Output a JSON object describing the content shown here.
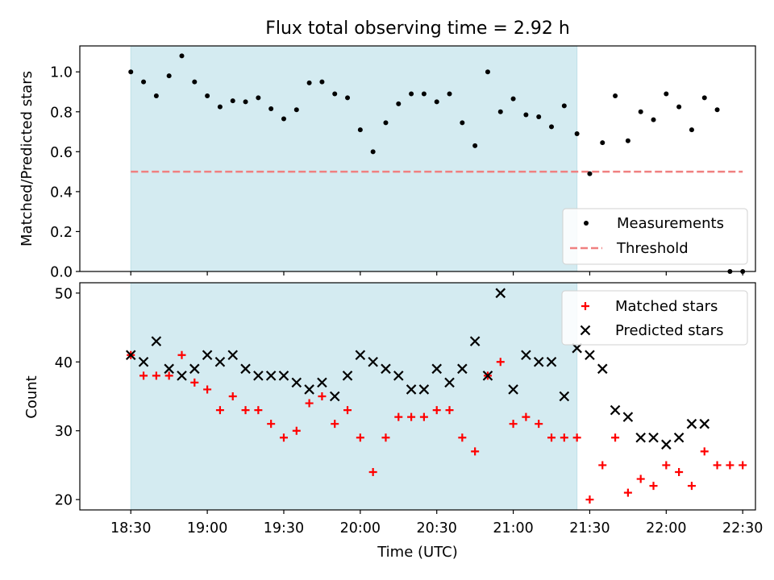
{
  "chart_data": [
    {
      "type": "scatter",
      "title": "Flux total observing time = 2.92 h",
      "ylabel": "Matched/Predicted stars",
      "xlabel": "",
      "x_unit": "minutes past 18:30 UTC",
      "xlim": [
        -20,
        245
      ],
      "ylim": [
        0.0,
        1.13
      ],
      "yticks": [
        "0.0",
        "0.2",
        "0.4",
        "0.6",
        "0.8",
        "1.0"
      ],
      "shaded_span": [
        0,
        175
      ],
      "shade_color": "#d4ebf1",
      "threshold": {
        "name": "Threshold",
        "y": 0.5,
        "x_range": [
          0,
          240
        ],
        "color": "#f08080"
      },
      "series": [
        {
          "name": "Measurements",
          "marker": "dot",
          "color": "#000000",
          "x": [
            0,
            5,
            10,
            15,
            20,
            25,
            30,
            35,
            40,
            45,
            50,
            55,
            60,
            65,
            70,
            75,
            80,
            85,
            90,
            95,
            100,
            105,
            110,
            115,
            120,
            125,
            130,
            135,
            140,
            145,
            150,
            155,
            160,
            165,
            170,
            175,
            180,
            185,
            190,
            195,
            200,
            205,
            210,
            215,
            220,
            225,
            230,
            235,
            240
          ],
          "y": [
            1.0,
            0.95,
            0.88,
            0.98,
            1.08,
            0.95,
            0.88,
            0.825,
            0.855,
            0.85,
            0.87,
            0.815,
            0.765,
            0.81,
            0.945,
            0.95,
            0.89,
            0.87,
            0.71,
            0.6,
            0.745,
            0.84,
            0.89,
            0.89,
            0.85,
            0.89,
            0.745,
            0.63,
            1.0,
            0.8,
            0.865,
            0.785,
            0.775,
            0.725,
            0.83,
            0.69,
            0.49,
            0.645,
            0.88,
            0.655,
            0.8,
            0.76,
            0.89,
            0.825,
            0.71,
            0.87,
            0.81,
            0.0,
            0.0
          ]
        }
      ],
      "legend": {
        "placement": "lower-right",
        "entries": [
          "Measurements",
          "Threshold"
        ]
      }
    },
    {
      "type": "scatter",
      "title": "",
      "ylabel": "Count",
      "xlabel": "Time (UTC)",
      "x_unit": "minutes past 18:30 UTC",
      "xlim": [
        -20,
        245
      ],
      "ylim": [
        18.5,
        51.5
      ],
      "yticks": [
        "20",
        "30",
        "40",
        "50"
      ],
      "xticks": [
        {
          "x": 0,
          "label": "18:30"
        },
        {
          "x": 30,
          "label": "19:00"
        },
        {
          "x": 60,
          "label": "19:30"
        },
        {
          "x": 90,
          "label": "20:00"
        },
        {
          "x": 120,
          "label": "20:30"
        },
        {
          "x": 150,
          "label": "21:00"
        },
        {
          "x": 180,
          "label": "21:30"
        },
        {
          "x": 210,
          "label": "22:00"
        },
        {
          "x": 240,
          "label": "22:30"
        }
      ],
      "shaded_span": [
        0,
        175
      ],
      "series": [
        {
          "name": "Matched stars",
          "marker": "plus",
          "color": "#ff0000",
          "x": [
            0,
            5,
            10,
            15,
            20,
            25,
            30,
            35,
            40,
            45,
            50,
            55,
            60,
            65,
            70,
            75,
            80,
            85,
            90,
            95,
            100,
            105,
            110,
            115,
            120,
            125,
            130,
            135,
            140,
            145,
            150,
            155,
            160,
            165,
            170,
            175,
            180,
            185,
            190,
            195,
            200,
            205,
            210,
            215,
            220,
            225,
            230,
            235,
            240
          ],
          "y": [
            41,
            38,
            38,
            38,
            41,
            37,
            36,
            33,
            35,
            33,
            33,
            31,
            29,
            30,
            34,
            35,
            31,
            33,
            29,
            24,
            29,
            32,
            32,
            32,
            33,
            33,
            29,
            27,
            38,
            40,
            31,
            32,
            31,
            29,
            29,
            29,
            20,
            25,
            29,
            21,
            23,
            22,
            25,
            24,
            22,
            27,
            25,
            25,
            25
          ]
        },
        {
          "name": "Predicted stars",
          "marker": "x",
          "color": "#000000",
          "x": [
            0,
            5,
            10,
            15,
            20,
            25,
            30,
            35,
            40,
            45,
            50,
            55,
            60,
            65,
            70,
            75,
            80,
            85,
            90,
            95,
            100,
            105,
            110,
            115,
            120,
            125,
            130,
            135,
            140,
            145,
            150,
            155,
            160,
            165,
            170,
            175,
            180,
            185,
            190,
            195,
            200,
            205,
            210,
            215,
            220,
            225
          ],
          "y": [
            41,
            40,
            43,
            39,
            38,
            39,
            41,
            40,
            41,
            39,
            38,
            38,
            38,
            37,
            36,
            37,
            35,
            38,
            41,
            40,
            39,
            38,
            36,
            36,
            39,
            37,
            39,
            43,
            38,
            50,
            36,
            41,
            40,
            40,
            35,
            42,
            41,
            39,
            33,
            32,
            29,
            29,
            28,
            29,
            31,
            31
          ]
        }
      ],
      "legend": {
        "placement": "upper-right",
        "entries": [
          "Matched stars",
          "Predicted stars"
        ]
      }
    }
  ]
}
